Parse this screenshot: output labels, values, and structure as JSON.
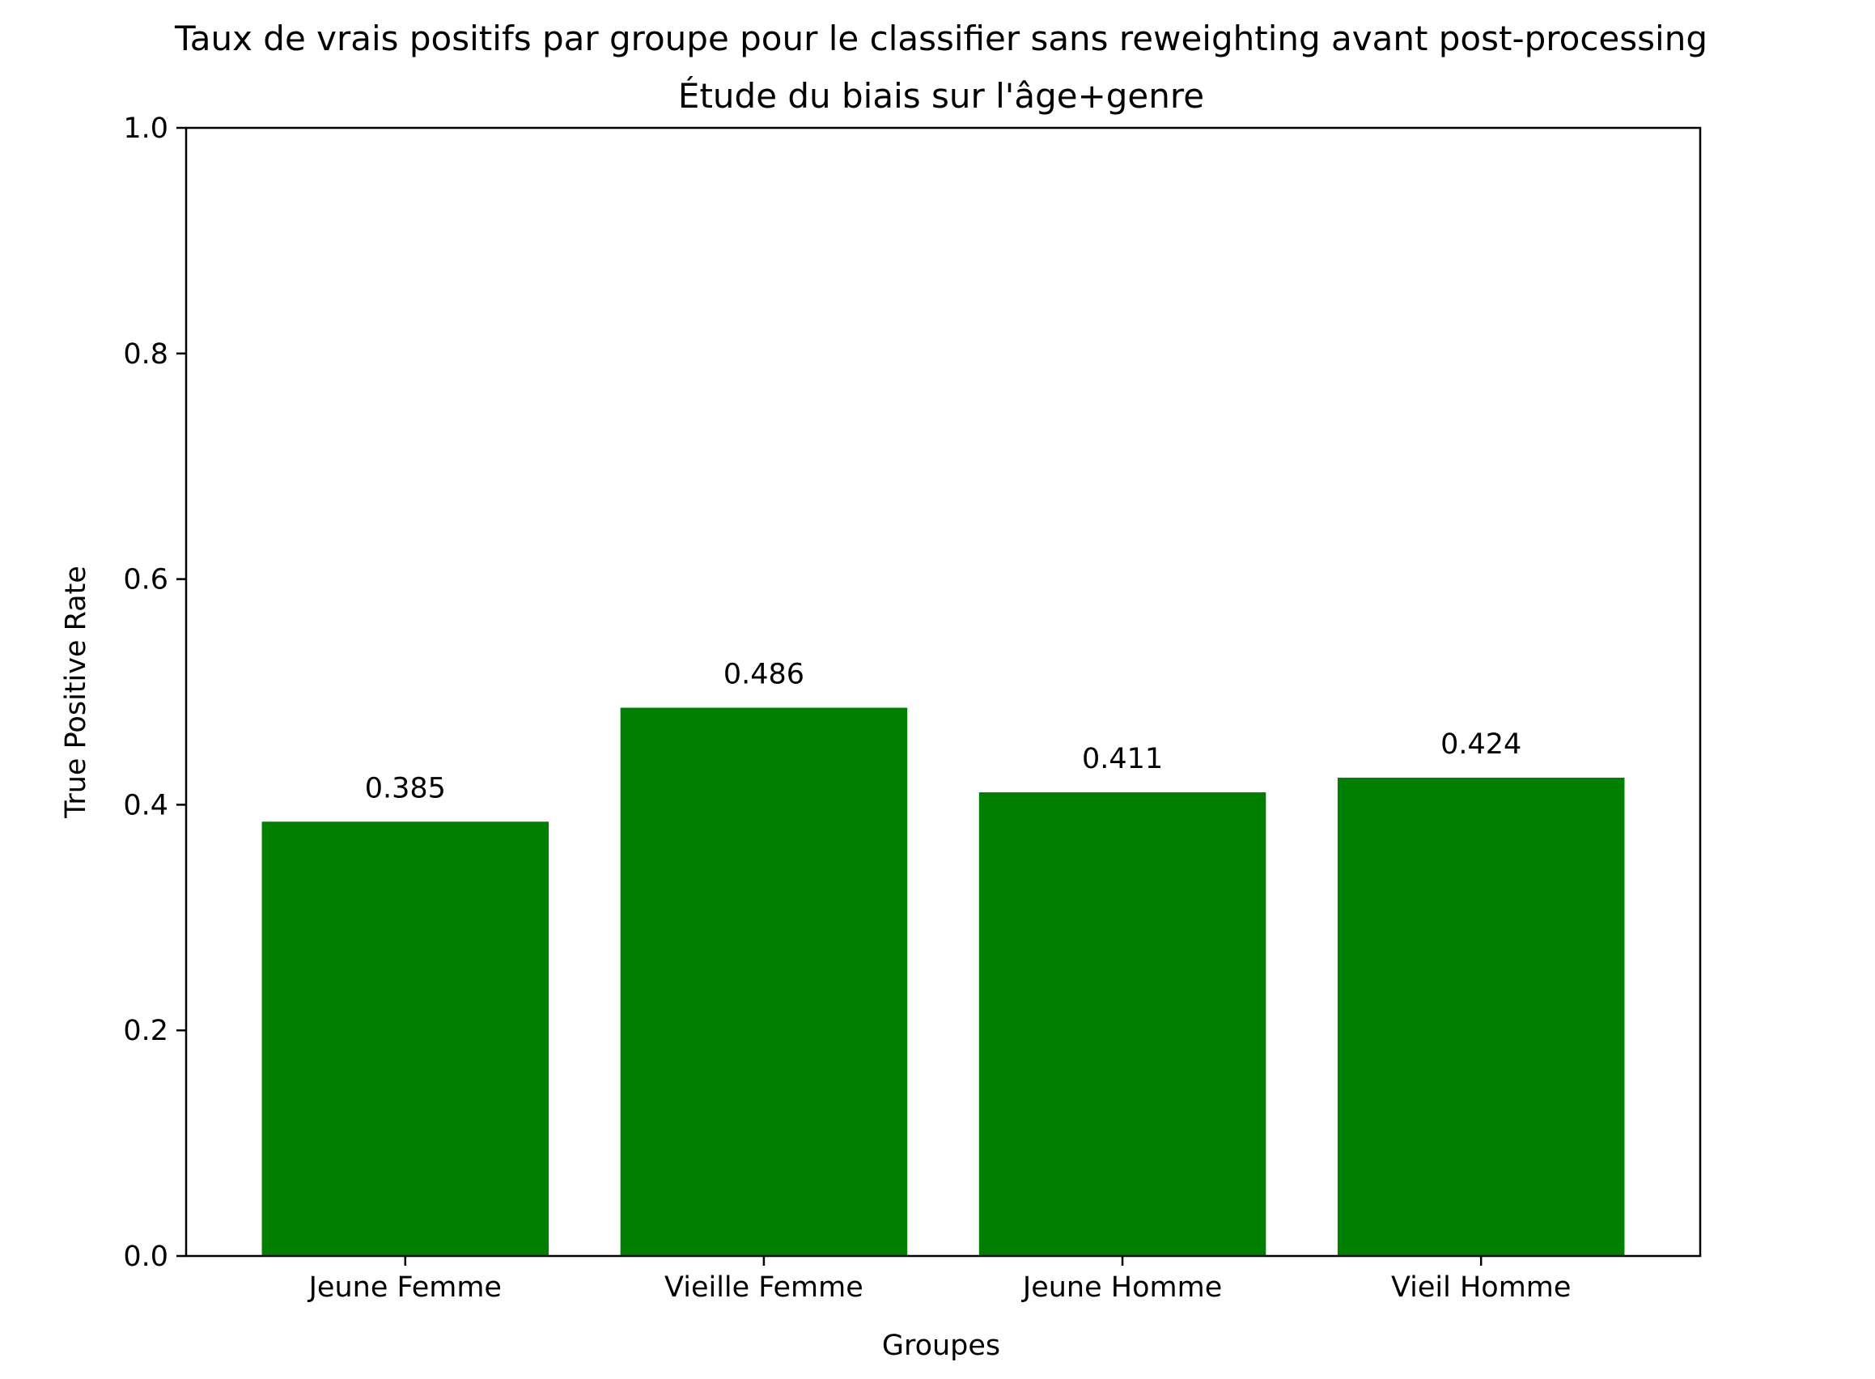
{
  "chart_data": {
    "type": "bar",
    "title": "Taux de vrais positifs par groupe pour le classifier sans reweighting avant post-processing",
    "subtitle": "Étude du biais sur l'âge+genre",
    "xlabel": "Groupes",
    "ylabel": "True Positive Rate",
    "categories": [
      "Jeune Femme",
      "Vieille Femme",
      "Jeune Homme",
      "Vieil Homme"
    ],
    "values": [
      0.385,
      0.486,
      0.411,
      0.424
    ],
    "data_labels": [
      "0.385",
      "0.486",
      "0.411",
      "0.424"
    ],
    "ylim": [
      0,
      1.0
    ],
    "yticks": [
      0.0,
      0.2,
      0.4,
      0.6,
      0.8,
      1.0
    ],
    "ytick_labels": [
      "0.0",
      "0.2",
      "0.4",
      "0.6",
      "0.8",
      "1.0"
    ],
    "bar_color": "#008000",
    "grid": false,
    "legend": "none"
  }
}
